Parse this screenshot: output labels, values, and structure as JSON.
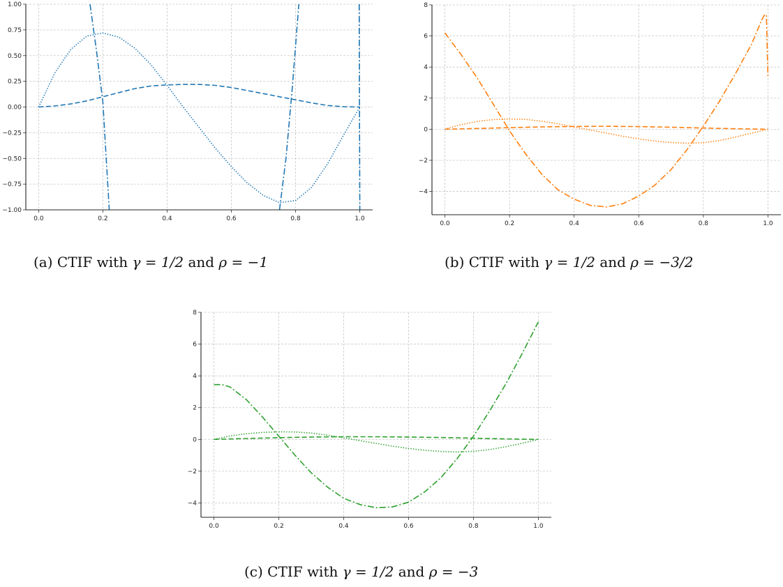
{
  "chart_data": [
    {
      "id": "a",
      "type": "line",
      "caption": {
        "prefix": "(a) CTIF with ",
        "gamma": "γ = 1/2",
        "and": " and ",
        "rho": "ρ = −1"
      },
      "xlim": [
        -0.04,
        1.04
      ],
      "ylim": [
        -1.0,
        1.0
      ],
      "xticks": [
        0.0,
        0.2,
        0.4,
        0.6,
        0.8,
        1.0
      ],
      "xtick_labels": [
        "0.0",
        "0.2",
        "0.4",
        "0.6",
        "0.8",
        "1.0"
      ],
      "yticks": [
        -1.0,
        -0.75,
        -0.5,
        -0.25,
        0.0,
        0.25,
        0.5,
        0.75,
        1.0
      ],
      "ytick_labels": [
        "−1.00",
        "−0.75",
        "−0.50",
        "−0.25",
        "0.00",
        "0.25",
        "0.50",
        "0.75",
        "1.00"
      ],
      "grid": true,
      "color": "#1f77b4",
      "series": [
        {
          "style": "dashed",
          "points": [
            [
              0.0,
              0.0
            ],
            [
              0.05,
              0.01
            ],
            [
              0.1,
              0.03
            ],
            [
              0.15,
              0.06
            ],
            [
              0.2,
              0.1
            ],
            [
              0.25,
              0.14
            ],
            [
              0.3,
              0.18
            ],
            [
              0.35,
              0.205
            ],
            [
              0.4,
              0.215
            ],
            [
              0.45,
              0.22
            ],
            [
              0.5,
              0.22
            ],
            [
              0.55,
              0.21
            ],
            [
              0.6,
              0.19
            ],
            [
              0.65,
              0.16
            ],
            [
              0.7,
              0.13
            ],
            [
              0.75,
              0.1
            ],
            [
              0.8,
              0.07
            ],
            [
              0.85,
              0.04
            ],
            [
              0.9,
              0.015
            ],
            [
              0.95,
              0.003
            ],
            [
              1.0,
              0.0
            ]
          ]
        },
        {
          "style": "dotted",
          "points": [
            [
              0.0,
              0.0
            ],
            [
              0.05,
              0.33
            ],
            [
              0.1,
              0.56
            ],
            [
              0.15,
              0.69
            ],
            [
              0.2,
              0.72
            ],
            [
              0.25,
              0.68
            ],
            [
              0.3,
              0.57
            ],
            [
              0.35,
              0.41
            ],
            [
              0.4,
              0.21
            ],
            [
              0.45,
              0.0
            ],
            [
              0.5,
              -0.2
            ],
            [
              0.55,
              -0.4
            ],
            [
              0.6,
              -0.58
            ],
            [
              0.65,
              -0.74
            ],
            [
              0.7,
              -0.86
            ],
            [
              0.75,
              -0.93
            ],
            [
              0.8,
              -0.91
            ],
            [
              0.85,
              -0.78
            ],
            [
              0.9,
              -0.55
            ],
            [
              0.95,
              -0.27
            ],
            [
              1.0,
              0.0
            ]
          ]
        },
        {
          "style": "dashdot",
          "points": [
            [
              0.16,
              1.0
            ],
            [
              0.18,
              0.55
            ],
            [
              0.2,
              0.05
            ],
            [
              0.22,
              -1.0
            ]
          ]
        },
        {
          "style": "dashdot",
          "points": [
            [
              0.75,
              -1.0
            ],
            [
              0.77,
              -0.5
            ],
            [
              0.79,
              0.2
            ],
            [
              0.81,
              1.0
            ]
          ]
        },
        {
          "style": "dashdot",
          "points": [
            [
              0.998,
              1.0
            ],
            [
              0.999,
              0.0
            ],
            [
              1.0,
              -1.0
            ]
          ]
        }
      ]
    },
    {
      "id": "b",
      "type": "line",
      "caption": {
        "prefix": "(b) CTIF with ",
        "gamma": "γ = 1/2",
        "and": " and ",
        "rho": "ρ = −3/2"
      },
      "xlim": [
        -0.04,
        1.04
      ],
      "ylim": [
        -5.5,
        8.0
      ],
      "xticks": [
        0.0,
        0.2,
        0.4,
        0.6,
        0.8,
        1.0
      ],
      "xtick_labels": [
        "0.0",
        "0.2",
        "0.4",
        "0.6",
        "0.8",
        "1.0"
      ],
      "yticks": [
        -4,
        -2,
        0,
        2,
        4,
        6,
        8
      ],
      "ytick_labels": [
        "−4",
        "−2",
        "0",
        "2",
        "4",
        "6",
        "8"
      ],
      "grid": true,
      "color": "#ff7f0e",
      "series": [
        {
          "style": "dashed",
          "points": [
            [
              0.0,
              0.0
            ],
            [
              0.1,
              0.05
            ],
            [
              0.2,
              0.1
            ],
            [
              0.3,
              0.15
            ],
            [
              0.4,
              0.18
            ],
            [
              0.5,
              0.19
            ],
            [
              0.6,
              0.17
            ],
            [
              0.7,
              0.13
            ],
            [
              0.8,
              0.08
            ],
            [
              0.9,
              0.03
            ],
            [
              1.0,
              0.0
            ]
          ]
        },
        {
          "style": "dotted",
          "points": [
            [
              0.0,
              0.0
            ],
            [
              0.05,
              0.3
            ],
            [
              0.1,
              0.5
            ],
            [
              0.15,
              0.62
            ],
            [
              0.2,
              0.66
            ],
            [
              0.25,
              0.63
            ],
            [
              0.3,
              0.52
            ],
            [
              0.35,
              0.35
            ],
            [
              0.4,
              0.15
            ],
            [
              0.45,
              -0.05
            ],
            [
              0.5,
              -0.25
            ],
            [
              0.55,
              -0.45
            ],
            [
              0.6,
              -0.62
            ],
            [
              0.65,
              -0.76
            ],
            [
              0.7,
              -0.86
            ],
            [
              0.75,
              -0.9
            ],
            [
              0.8,
              -0.87
            ],
            [
              0.85,
              -0.73
            ],
            [
              0.9,
              -0.5
            ],
            [
              0.95,
              -0.25
            ],
            [
              1.0,
              0.0
            ]
          ]
        },
        {
          "style": "dashdot",
          "points": [
            [
              0.0,
              6.2
            ],
            [
              0.05,
              4.8
            ],
            [
              0.1,
              3.3
            ],
            [
              0.15,
              1.6
            ],
            [
              0.2,
              -0.1
            ],
            [
              0.25,
              -1.6
            ],
            [
              0.3,
              -2.9
            ],
            [
              0.35,
              -3.9
            ],
            [
              0.4,
              -4.5
            ],
            [
              0.45,
              -4.9
            ],
            [
              0.5,
              -5.0
            ],
            [
              0.55,
              -4.8
            ],
            [
              0.6,
              -4.3
            ],
            [
              0.65,
              -3.6
            ],
            [
              0.7,
              -2.6
            ],
            [
              0.75,
              -1.3
            ],
            [
              0.8,
              0.2
            ],
            [
              0.85,
              1.8
            ],
            [
              0.9,
              3.6
            ],
            [
              0.95,
              5.5
            ],
            [
              0.98,
              7.0
            ],
            [
              0.99,
              7.4
            ],
            [
              0.995,
              7.3
            ],
            [
              1.0,
              3.3
            ]
          ]
        }
      ]
    },
    {
      "id": "c",
      "type": "line",
      "caption": {
        "prefix": "(c) CTIF with ",
        "gamma": "γ = 1/2",
        "and": " and ",
        "rho": "ρ = −3"
      },
      "xlim": [
        -0.04,
        1.04
      ],
      "ylim": [
        -4.9,
        8.0
      ],
      "xticks": [
        0.0,
        0.2,
        0.4,
        0.6,
        0.8,
        1.0
      ],
      "xtick_labels": [
        "0.0",
        "0.2",
        "0.4",
        "0.6",
        "0.8",
        "1.0"
      ],
      "yticks": [
        -4,
        -2,
        0,
        2,
        4,
        6,
        8
      ],
      "ytick_labels": [
        "−4",
        "−2",
        "0",
        "2",
        "4",
        "6",
        "8"
      ],
      "grid": true,
      "color": "#2ca02c",
      "series": [
        {
          "style": "dashed",
          "points": [
            [
              0.0,
              0.0
            ],
            [
              0.1,
              0.06
            ],
            [
              0.2,
              0.11
            ],
            [
              0.3,
              0.15
            ],
            [
              0.4,
              0.17
            ],
            [
              0.5,
              0.17
            ],
            [
              0.6,
              0.15
            ],
            [
              0.7,
              0.12
            ],
            [
              0.8,
              0.08
            ],
            [
              0.9,
              0.03
            ],
            [
              1.0,
              0.0
            ]
          ]
        },
        {
          "style": "dotted",
          "points": [
            [
              0.0,
              0.0
            ],
            [
              0.05,
              0.22
            ],
            [
              0.1,
              0.36
            ],
            [
              0.15,
              0.44
            ],
            [
              0.2,
              0.48
            ],
            [
              0.25,
              0.47
            ],
            [
              0.3,
              0.4
            ],
            [
              0.35,
              0.27
            ],
            [
              0.4,
              0.1
            ],
            [
              0.45,
              -0.08
            ],
            [
              0.5,
              -0.25
            ],
            [
              0.55,
              -0.42
            ],
            [
              0.6,
              -0.57
            ],
            [
              0.65,
              -0.68
            ],
            [
              0.7,
              -0.76
            ],
            [
              0.75,
              -0.79
            ],
            [
              0.8,
              -0.75
            ],
            [
              0.85,
              -0.64
            ],
            [
              0.9,
              -0.46
            ],
            [
              0.95,
              -0.24
            ],
            [
              1.0,
              0.0
            ]
          ]
        },
        {
          "style": "dashdot",
          "points": [
            [
              0.0,
              3.45
            ],
            [
              0.025,
              3.45
            ],
            [
              0.05,
              3.3
            ],
            [
              0.1,
              2.5
            ],
            [
              0.15,
              1.4
            ],
            [
              0.2,
              0.2
            ],
            [
              0.25,
              -1.0
            ],
            [
              0.3,
              -2.1
            ],
            [
              0.35,
              -3.0
            ],
            [
              0.4,
              -3.7
            ],
            [
              0.45,
              -4.1
            ],
            [
              0.5,
              -4.3
            ],
            [
              0.55,
              -4.25
            ],
            [
              0.6,
              -3.95
            ],
            [
              0.65,
              -3.3
            ],
            [
              0.7,
              -2.4
            ],
            [
              0.75,
              -1.2
            ],
            [
              0.8,
              0.2
            ],
            [
              0.85,
              1.8
            ],
            [
              0.9,
              3.5
            ],
            [
              0.95,
              5.4
            ],
            [
              1.0,
              7.4
            ]
          ]
        }
      ]
    }
  ]
}
